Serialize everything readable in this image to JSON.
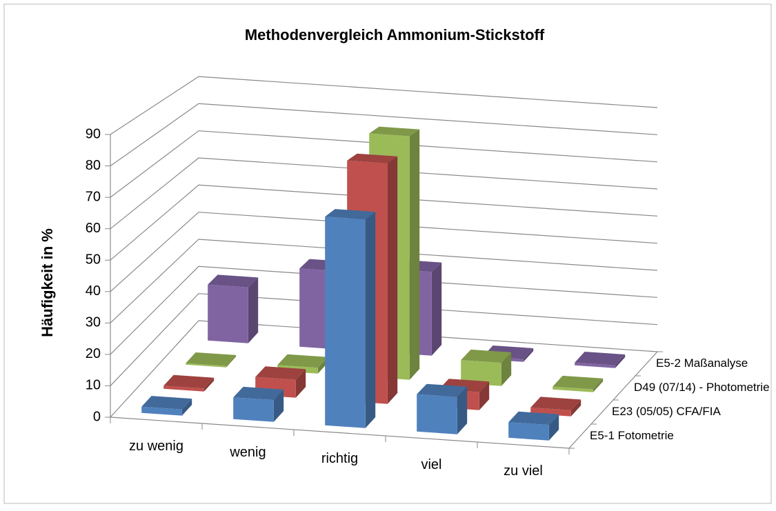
{
  "chart_data": {
    "type": "bar3d",
    "title": "Methodenvergleich Ammonium-Stickstoff",
    "ylabel": "Häufigkeit in %",
    "categories": [
      "zu wenig",
      "wenig",
      "richtig",
      "viel",
      "zu viel"
    ],
    "series": [
      {
        "name": "E5-1 Fotometrie",
        "color": "#4f81bd",
        "values": [
          2,
          7,
          67,
          12,
          5
        ]
      },
      {
        "name": "E23 (05/05) CFA/FIA",
        "color": "#c0504d",
        "values": [
          1,
          6,
          80,
          6,
          2
        ]
      },
      {
        "name": "D49 (07/14) - Photometrie",
        "color": "#9bbb59",
        "values": [
          0.5,
          2,
          84,
          8,
          1
        ]
      },
      {
        "name": "E5-2 Maßanalyse",
        "color": "#8064a2",
        "values": [
          20,
          28,
          30,
          1,
          1
        ]
      }
    ],
    "ylim": [
      0,
      90
    ],
    "yticks": [
      0,
      10,
      20,
      30,
      40,
      50,
      60,
      70,
      80,
      90
    ],
    "grid": true
  }
}
